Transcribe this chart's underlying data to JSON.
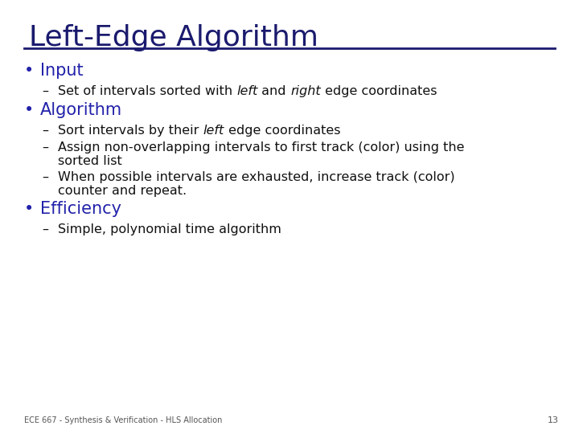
{
  "title": "Left-Edge Algorithm",
  "title_color": "#1a1a6e",
  "title_fontsize": 26,
  "separator_color": "#1a1a6e",
  "bullet_color": "#2222aa",
  "bullet_fontsize": 15,
  "sub_fontsize": 11.5,
  "body_color": "#111111",
  "footer_text": "ECE 667 - Synthesis & Verification - HLS Allocation",
  "page_number": "13",
  "background_color": "#ffffff",
  "content": [
    {
      "type": "bullet",
      "label": "Input"
    },
    {
      "type": "sub",
      "parts": [
        [
          "Set of intervals sorted with ",
          false
        ],
        [
          "left",
          true
        ],
        [
          " and ",
          false
        ],
        [
          "right",
          true
        ],
        [
          " edge coordinates",
          false
        ]
      ]
    },
    {
      "type": "bullet",
      "label": "Algorithm"
    },
    {
      "type": "sub",
      "parts": [
        [
          "Sort intervals by their ",
          false
        ],
        [
          "left",
          true
        ],
        [
          " edge coordinates",
          false
        ]
      ]
    },
    {
      "type": "sub",
      "parts": [
        [
          "Assign non-overlapping intervals to first track (color) using the\nsorted list",
          false
        ]
      ]
    },
    {
      "type": "sub",
      "parts": [
        [
          "When possible intervals are exhausted, increase track (color)\ncounter and repeat.",
          false
        ]
      ]
    },
    {
      "type": "bullet",
      "label": "Efficiency"
    },
    {
      "type": "sub",
      "parts": [
        [
          "Simple, polynomial time algorithm",
          false
        ]
      ]
    }
  ]
}
